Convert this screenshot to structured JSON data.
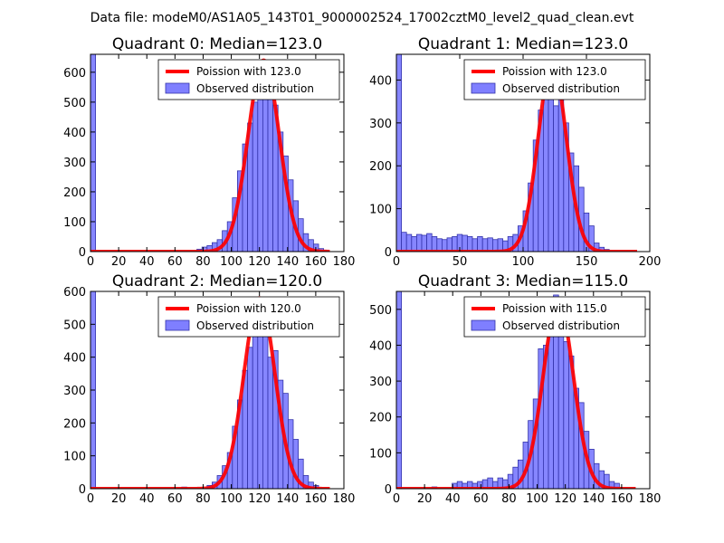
{
  "figure": {
    "suptitle": "Data file: modeM0/AS1A05_143T01_9000002524_17002cztM0_level2_quad_clean.evt",
    "colors": {
      "curve": "#ff0000",
      "bar_fill": "#7f7fff",
      "bar_edge": "#3333aa",
      "axes": "#000000",
      "legend_edge": "#000000"
    }
  },
  "chart_data": [
    {
      "type": "bar",
      "title": "Quadrant 0: Median=123.0",
      "xlim": [
        0,
        180
      ],
      "ylim": [
        0,
        660
      ],
      "xticks": [
        0,
        20,
        40,
        60,
        80,
        100,
        120,
        140,
        160,
        180
      ],
      "yticks": [
        0,
        100,
        200,
        300,
        400,
        500,
        600
      ],
      "legend": {
        "location": "top-right",
        "entries": [
          "Poission with 123.0",
          "Observed distribution"
        ]
      },
      "series": [
        {
          "name": "Observed distribution",
          "type": "histogram",
          "bin_width": 3.6,
          "bins": [
            {
              "x": 0,
              "y": 660
            },
            {
              "x": 75.6,
              "y": 8
            },
            {
              "x": 79.2,
              "y": 15
            },
            {
              "x": 82.8,
              "y": 20
            },
            {
              "x": 86.4,
              "y": 30
            },
            {
              "x": 90,
              "y": 40
            },
            {
              "x": 93.6,
              "y": 70
            },
            {
              "x": 97.2,
              "y": 100
            },
            {
              "x": 100.8,
              "y": 180
            },
            {
              "x": 104.4,
              "y": 270
            },
            {
              "x": 108,
              "y": 360
            },
            {
              "x": 111.6,
              "y": 430
            },
            {
              "x": 115.2,
              "y": 500
            },
            {
              "x": 118.8,
              "y": 520
            },
            {
              "x": 122.4,
              "y": 630
            },
            {
              "x": 126,
              "y": 560
            },
            {
              "x": 129.6,
              "y": 490
            },
            {
              "x": 133.2,
              "y": 400
            },
            {
              "x": 136.8,
              "y": 320
            },
            {
              "x": 140.4,
              "y": 240
            },
            {
              "x": 144,
              "y": 170
            },
            {
              "x": 147.6,
              "y": 110
            },
            {
              "x": 151.2,
              "y": 60
            },
            {
              "x": 154.8,
              "y": 40
            },
            {
              "x": 158.4,
              "y": 25
            },
            {
              "x": 162,
              "y": 10
            },
            {
              "x": 165.6,
              "y": 5
            }
          ]
        },
        {
          "name": "Poission with 123.0",
          "type": "line",
          "mean": 123.0,
          "peak": 640,
          "x_range": [
            0,
            170
          ]
        }
      ]
    },
    {
      "type": "bar",
      "title": "Quadrant 1: Median=123.0",
      "xlim": [
        0,
        200
      ],
      "ylim": [
        0,
        460
      ],
      "xticks": [
        0,
        50,
        100,
        150,
        200
      ],
      "yticks": [
        0,
        100,
        200,
        300,
        400
      ],
      "legend": {
        "location": "top-right",
        "entries": [
          "Poission with 123.0",
          "Observed distribution"
        ]
      },
      "series": [
        {
          "name": "Observed distribution",
          "type": "histogram",
          "bin_width": 4,
          "bins": [
            {
              "x": 0,
              "y": 460
            },
            {
              "x": 4,
              "y": 45
            },
            {
              "x": 8,
              "y": 40
            },
            {
              "x": 12,
              "y": 35
            },
            {
              "x": 16,
              "y": 40
            },
            {
              "x": 20,
              "y": 38
            },
            {
              "x": 24,
              "y": 42
            },
            {
              "x": 28,
              "y": 35
            },
            {
              "x": 32,
              "y": 30
            },
            {
              "x": 36,
              "y": 28
            },
            {
              "x": 40,
              "y": 32
            },
            {
              "x": 44,
              "y": 35
            },
            {
              "x": 48,
              "y": 40
            },
            {
              "x": 52,
              "y": 38
            },
            {
              "x": 56,
              "y": 35
            },
            {
              "x": 60,
              "y": 30
            },
            {
              "x": 64,
              "y": 35
            },
            {
              "x": 68,
              "y": 30
            },
            {
              "x": 72,
              "y": 32
            },
            {
              "x": 76,
              "y": 28
            },
            {
              "x": 80,
              "y": 30
            },
            {
              "x": 84,
              "y": 25
            },
            {
              "x": 88,
              "y": 35
            },
            {
              "x": 92,
              "y": 40
            },
            {
              "x": 96,
              "y": 60
            },
            {
              "x": 100,
              "y": 95
            },
            {
              "x": 104,
              "y": 160
            },
            {
              "x": 108,
              "y": 260
            },
            {
              "x": 112,
              "y": 330
            },
            {
              "x": 116,
              "y": 400
            },
            {
              "x": 120,
              "y": 420
            },
            {
              "x": 124,
              "y": 340
            },
            {
              "x": 128,
              "y": 420
            },
            {
              "x": 132,
              "y": 300
            },
            {
              "x": 136,
              "y": 230
            },
            {
              "x": 140,
              "y": 200
            },
            {
              "x": 144,
              "y": 150
            },
            {
              "x": 148,
              "y": 90
            },
            {
              "x": 152,
              "y": 60
            },
            {
              "x": 156,
              "y": 20
            },
            {
              "x": 160,
              "y": 10
            },
            {
              "x": 164,
              "y": 5
            }
          ]
        },
        {
          "name": "Poission with 123.0",
          "type": "line",
          "mean": 123.0,
          "peak": 440,
          "x_range": [
            0,
            190
          ]
        }
      ]
    },
    {
      "type": "bar",
      "title": "Quadrant 2: Median=120.0",
      "xlim": [
        0,
        180
      ],
      "ylim": [
        0,
        600
      ],
      "xticks": [
        0,
        20,
        40,
        60,
        80,
        100,
        120,
        140,
        160,
        180
      ],
      "yticks": [
        0,
        100,
        200,
        300,
        400,
        500,
        600
      ],
      "legend": {
        "location": "top-right",
        "entries": [
          "Poission with 120.0",
          "Observed distribution"
        ]
      },
      "series": [
        {
          "name": "Observed distribution",
          "type": "histogram",
          "bin_width": 3.6,
          "bins": [
            {
              "x": 0,
              "y": 600
            },
            {
              "x": 64.8,
              "y": 5
            },
            {
              "x": 82.8,
              "y": 10
            },
            {
              "x": 86.4,
              "y": 20
            },
            {
              "x": 90,
              "y": 40
            },
            {
              "x": 93.6,
              "y": 70
            },
            {
              "x": 97.2,
              "y": 110
            },
            {
              "x": 100.8,
              "y": 190
            },
            {
              "x": 104.4,
              "y": 270
            },
            {
              "x": 108,
              "y": 360
            },
            {
              "x": 111.6,
              "y": 430
            },
            {
              "x": 115.2,
              "y": 520
            },
            {
              "x": 118.8,
              "y": 560
            },
            {
              "x": 122.4,
              "y": 550
            },
            {
              "x": 126,
              "y": 400
            },
            {
              "x": 129.6,
              "y": 420
            },
            {
              "x": 133.2,
              "y": 330
            },
            {
              "x": 136.8,
              "y": 290
            },
            {
              "x": 140.4,
              "y": 210
            },
            {
              "x": 144,
              "y": 150
            },
            {
              "x": 147.6,
              "y": 90
            },
            {
              "x": 151.2,
              "y": 40
            },
            {
              "x": 154.8,
              "y": 20
            },
            {
              "x": 158.4,
              "y": 10
            }
          ]
        },
        {
          "name": "Poission with 120.0",
          "type": "line",
          "mean": 120.0,
          "peak": 580,
          "x_range": [
            0,
            170
          ]
        }
      ]
    },
    {
      "type": "bar",
      "title": "Quadrant 3: Median=115.0",
      "xlim": [
        0,
        180
      ],
      "ylim": [
        0,
        550
      ],
      "xticks": [
        0,
        20,
        40,
        60,
        80,
        100,
        120,
        140,
        160,
        180
      ],
      "yticks": [
        0,
        100,
        200,
        300,
        400,
        500
      ],
      "legend": {
        "location": "top-right",
        "entries": [
          "Poission with 115.0",
          "Observed distribution"
        ]
      },
      "series": [
        {
          "name": "Observed distribution",
          "type": "histogram",
          "bin_width": 3.6,
          "bins": [
            {
              "x": 0,
              "y": 550
            },
            {
              "x": 25.2,
              "y": 5
            },
            {
              "x": 39.6,
              "y": 15
            },
            {
              "x": 43.2,
              "y": 20
            },
            {
              "x": 46.8,
              "y": 15
            },
            {
              "x": 50.4,
              "y": 20
            },
            {
              "x": 54,
              "y": 15
            },
            {
              "x": 57.6,
              "y": 20
            },
            {
              "x": 61.2,
              "y": 25
            },
            {
              "x": 64.8,
              "y": 30
            },
            {
              "x": 68.4,
              "y": 20
            },
            {
              "x": 72,
              "y": 30
            },
            {
              "x": 75.6,
              "y": 25
            },
            {
              "x": 79.2,
              "y": 40
            },
            {
              "x": 82.8,
              "y": 60
            },
            {
              "x": 86.4,
              "y": 80
            },
            {
              "x": 90,
              "y": 130
            },
            {
              "x": 93.6,
              "y": 190
            },
            {
              "x": 97.2,
              "y": 250
            },
            {
              "x": 100.8,
              "y": 390
            },
            {
              "x": 104.4,
              "y": 400
            },
            {
              "x": 108,
              "y": 450
            },
            {
              "x": 111.6,
              "y": 540
            },
            {
              "x": 115.2,
              "y": 490
            },
            {
              "x": 118.8,
              "y": 410
            },
            {
              "x": 122.4,
              "y": 370
            },
            {
              "x": 126,
              "y": 280
            },
            {
              "x": 129.6,
              "y": 240
            },
            {
              "x": 133.2,
              "y": 160
            },
            {
              "x": 136.8,
              "y": 110
            },
            {
              "x": 140.4,
              "y": 70
            },
            {
              "x": 144,
              "y": 50
            },
            {
              "x": 147.6,
              "y": 40
            },
            {
              "x": 151.2,
              "y": 20
            },
            {
              "x": 154.8,
              "y": 15
            }
          ]
        },
        {
          "name": "Poission with 115.0",
          "type": "line",
          "mean": 115.0,
          "peak": 520,
          "x_range": [
            0,
            170
          ]
        }
      ]
    }
  ]
}
